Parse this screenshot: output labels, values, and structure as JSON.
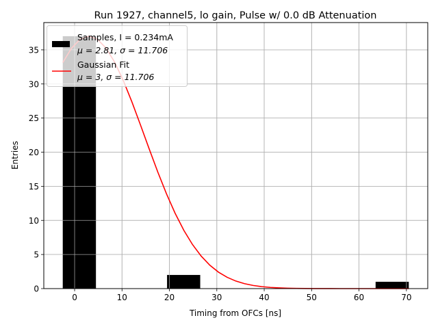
{
  "chart_data": {
    "type": "bar",
    "title": "Run 1927, channel5, lo gain, Pulse w/ 0.0 dB Attenuation",
    "xlabel": "Timing from OFCs [ns]",
    "ylabel": "Entries",
    "xlim": [
      -6.5,
      74.5
    ],
    "ylim": [
      0,
      39
    ],
    "xticks": [
      0,
      10,
      20,
      30,
      40,
      50,
      60,
      70
    ],
    "yticks": [
      0,
      5,
      10,
      15,
      20,
      25,
      30,
      35
    ],
    "grid": true,
    "legend_position": "top-left",
    "bars": [
      {
        "x0": -2.5,
        "x1": 4.5,
        "value": 37
      },
      {
        "x0": 19.5,
        "x1": 26.5,
        "value": 2
      },
      {
        "x0": 63.5,
        "x1": 70.5,
        "value": 1
      }
    ],
    "series": [
      {
        "name": "Samples, I = 0.234mA",
        "stat": "μ = 2.81, σ = 11.706",
        "color": "#000000",
        "kind": "histogram"
      },
      {
        "name": "Gaussian Fit",
        "stat": "μ = 3, σ = 11.706",
        "color": "#ff0000",
        "kind": "line"
      }
    ],
    "fit": {
      "amplitude": 37,
      "mu": 3,
      "sigma": 11.706,
      "x_start": -2.5,
      "x_end": 70.5
    }
  }
}
